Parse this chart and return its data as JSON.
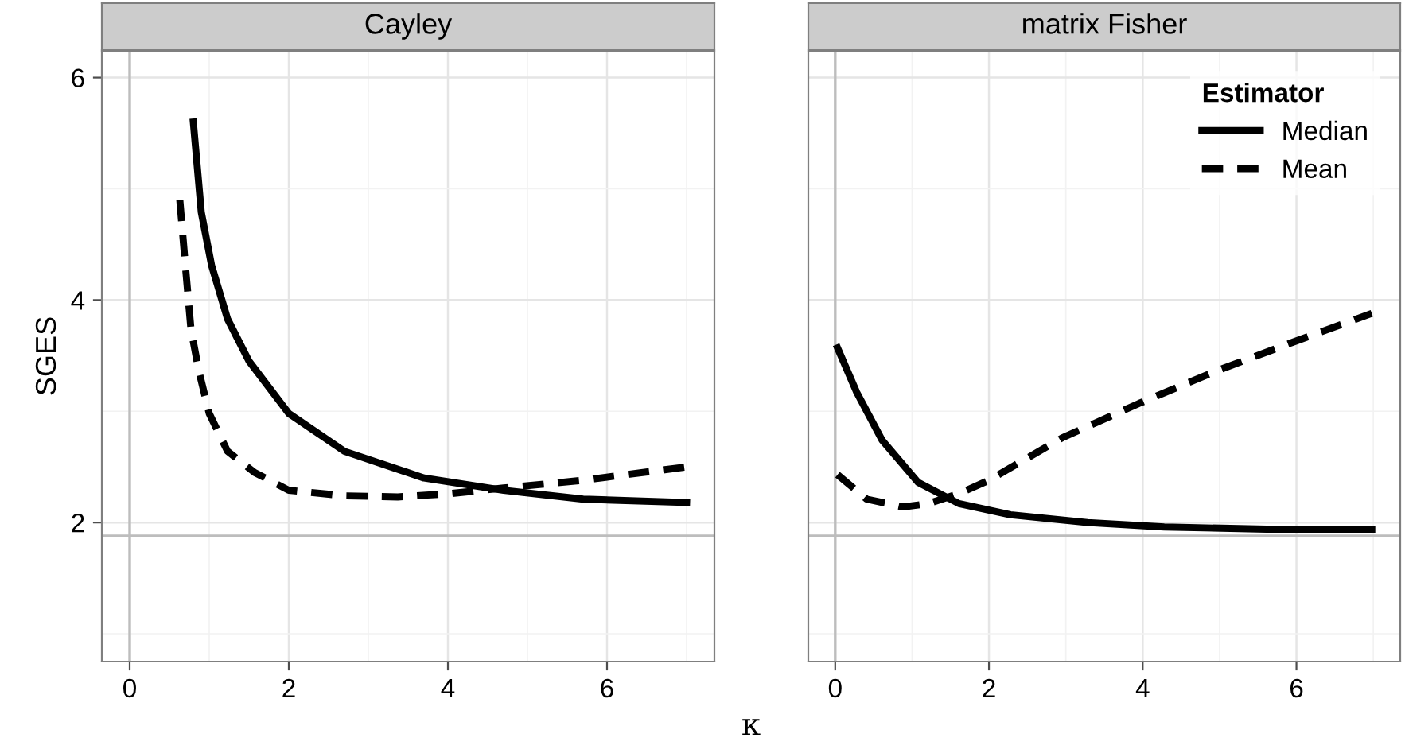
{
  "chart_data": [
    {
      "type": "line",
      "title": "Cayley",
      "xlabel": "κ",
      "ylabel": "SGES",
      "xlim": [
        -0.35,
        7.35
      ],
      "ylim": [
        0.75,
        6.24
      ],
      "xticks": [
        0,
        2,
        4,
        6
      ],
      "yticks": [
        2,
        4,
        6
      ],
      "grid": true,
      "ref_lines": [
        {
          "axis": "y",
          "value": 1.88,
          "color": "#bdbdbd"
        },
        {
          "axis": "x",
          "value": 0,
          "color": "#bdbdbd"
        }
      ],
      "series": [
        {
          "color": "#000000",
          "line_style": "solid",
          "x": [
            0.8,
            0.9,
            1.03,
            1.23,
            1.5,
            2.0,
            2.7,
            3.7,
            4.7,
            5.7,
            7.0
          ],
          "values": [
            5.6,
            4.79,
            4.31,
            3.83,
            3.45,
            2.98,
            2.64,
            2.4,
            2.29,
            2.21,
            2.18
          ]
        },
        {
          "color": "#000000",
          "line_style": "dashed",
          "x": [
            0.63,
            0.7,
            0.77,
            0.87,
            1.0,
            1.23,
            1.57,
            2.0,
            2.7,
            3.37,
            4.03,
            4.7,
            5.7,
            7.0
          ],
          "values": [
            4.9,
            4.31,
            3.74,
            3.36,
            2.98,
            2.64,
            2.45,
            2.29,
            2.24,
            2.23,
            2.26,
            2.31,
            2.38,
            2.5
          ]
        }
      ]
    },
    {
      "type": "line",
      "title": "matrix Fisher",
      "xlim": [
        -0.35,
        7.35
      ],
      "ylim": [
        0.75,
        6.24
      ],
      "xticks": [
        0,
        2,
        4,
        6
      ],
      "yticks": [
        2,
        4,
        6
      ],
      "grid": true,
      "tick_labels": "x",
      "legend": "top right",
      "legend_title": "Estimator",
      "ref_lines": [
        {
          "axis": "y",
          "value": 1.88,
          "color": "#bdbdbd"
        },
        {
          "axis": "x",
          "value": 0,
          "color": "#bdbdbd"
        }
      ],
      "series": [
        {
          "name": "Median",
          "color": "#000000",
          "line_style": "solid",
          "x": [
            0.03,
            0.28,
            0.61,
            1.08,
            1.61,
            2.28,
            3.28,
            4.28,
            5.61,
            6.98
          ],
          "values": [
            3.57,
            3.17,
            2.74,
            2.36,
            2.17,
            2.07,
            2.0,
            1.96,
            1.94,
            1.94
          ]
        },
        {
          "name": "Mean",
          "color": "#000000",
          "line_style": "dashed",
          "x": [
            0.03,
            0.41,
            0.88,
            1.21,
            1.61,
            2.0,
            2.95,
            3.95,
            4.95,
            5.95,
            6.98
          ],
          "values": [
            2.43,
            2.21,
            2.14,
            2.17,
            2.26,
            2.38,
            2.76,
            3.07,
            3.36,
            3.62,
            3.88
          ]
        }
      ]
    }
  ]
}
